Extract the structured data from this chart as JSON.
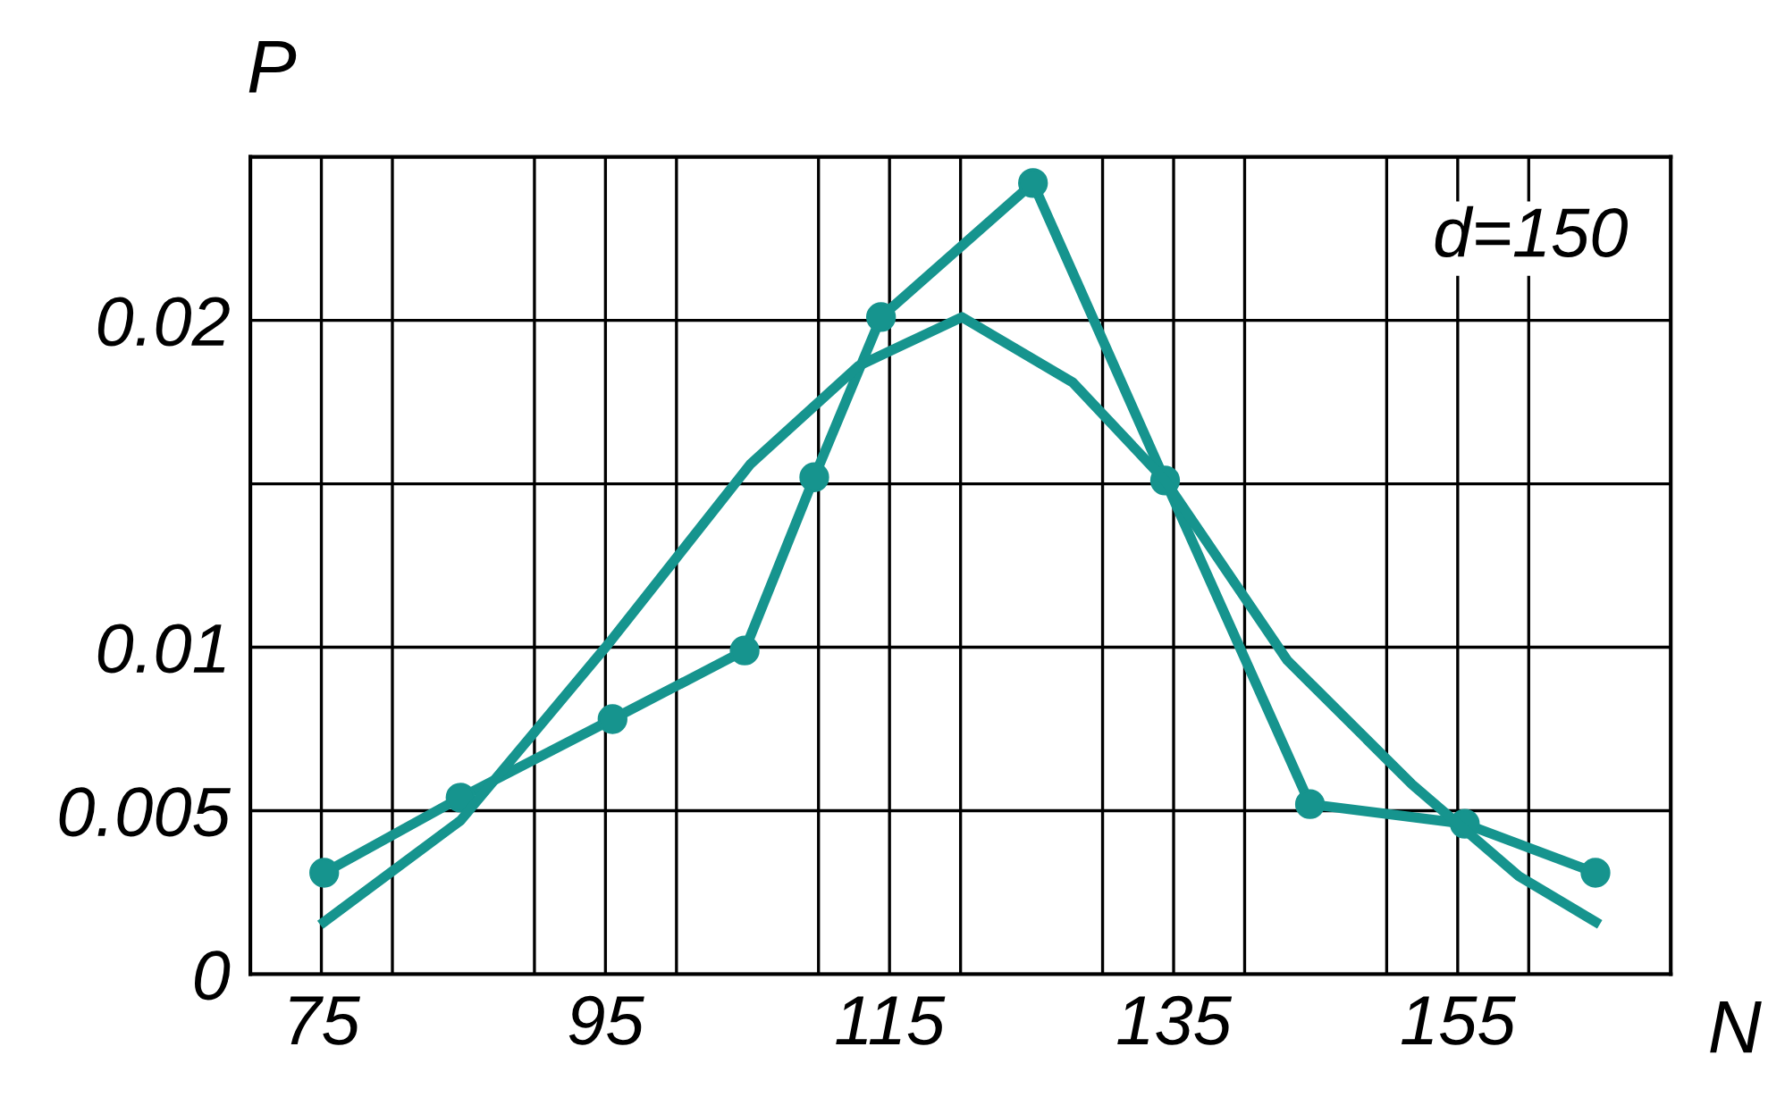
{
  "chart_data": {
    "type": "line",
    "xlabel": "N",
    "ylabel": "P",
    "xlim": [
      70,
      170
    ],
    "ylim": [
      0,
      0.025
    ],
    "xticks": [
      75,
      {
        "value": 80,
        "label": null
      },
      {
        "value": 90,
        "label": null
      },
      95,
      {
        "value": 100,
        "label": null
      },
      {
        "value": 110,
        "label": null
      },
      115,
      {
        "value": 120,
        "label": null
      },
      {
        "value": 130,
        "label": null
      },
      135,
      {
        "value": 140,
        "label": null
      },
      {
        "value": 150,
        "label": null
      },
      155,
      {
        "value": 160,
        "label": null
      }
    ],
    "yticks": [
      0,
      0.005,
      0.01,
      {
        "value": 0.015,
        "label": null
      },
      0.02
    ],
    "grid": true,
    "annotations": [
      "d=150"
    ],
    "series": [
      {
        "color": "#16948e",
        "marker": "circle",
        "x": [
          75.2,
          84.8,
          95.5,
          104.8,
          109.7,
          114.4,
          125.1,
          134.4,
          144.6,
          155.5,
          164.7
        ],
        "values": [
          0.0031,
          0.0054,
          0.0078,
          0.0099,
          0.0152,
          0.0201,
          0.0242,
          0.0151,
          0.0052,
          0.0046,
          0.0031
        ]
      },
      {
        "color": "#16948e",
        "marker": "none",
        "x": [
          75.2,
          84.8,
          95.2,
          105.2,
          112.8,
          120.1,
          127.9,
          134.4,
          143,
          151.8,
          159.3,
          164.7
        ],
        "values": [
          0.0016,
          0.0047,
          0.0101,
          0.0156,
          0.0186,
          0.0201,
          0.0181,
          0.0151,
          0.0096,
          0.0058,
          0.003,
          0.0016
        ]
      }
    ]
  }
}
